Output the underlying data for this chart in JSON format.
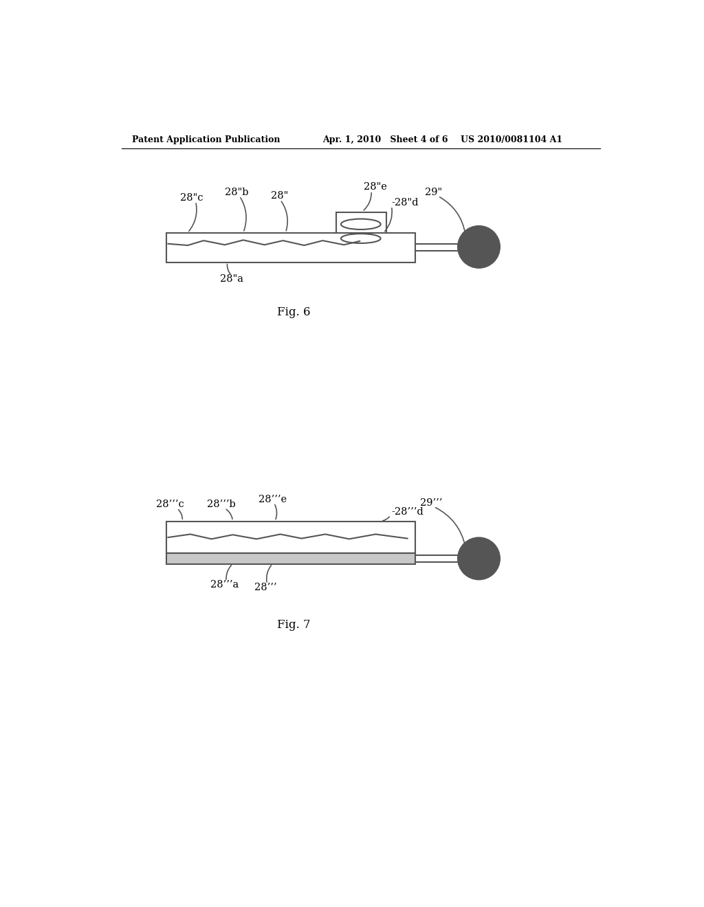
{
  "bg_color": "#ffffff",
  "line_color": "#555555",
  "dark_fill": "#555555",
  "header_left": "Patent Application Publication",
  "header_mid": "Apr. 1, 2010   Sheet 4 of 6",
  "header_right": "US 2010/0081104 A1",
  "fig6_caption": "Fig. 6",
  "fig7_caption": "Fig. 7"
}
